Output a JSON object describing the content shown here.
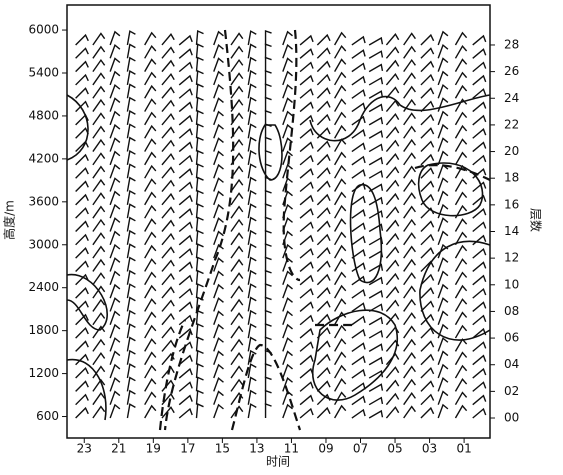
{
  "chart_data": {
    "type": "wind-barb",
    "ylabel": "高度/m",
    "y2label": "层数",
    "xlabel": "时间",
    "xlim": [
      24,
      -0.5
    ],
    "xticks": [
      23,
      21,
      19,
      17,
      15,
      13,
      11,
      {
        "value": 9,
        "label": "09"
      },
      {
        "value": 7,
        "label": "07"
      },
      {
        "value": 5,
        "label": "05"
      },
      {
        "value": 3,
        "label": "03"
      },
      {
        "value": 1,
        "label": "01"
      }
    ],
    "ylim": [
      300,
      6350
    ],
    "yticks": [
      600,
      1200,
      1800,
      2400,
      3000,
      3600,
      4200,
      4800,
      5400,
      6000
    ],
    "y2lim": [
      -1.5,
      31
    ],
    "y2ticks": [
      {
        "value": 0,
        "label": "00"
      },
      {
        "value": 2,
        "label": "02"
      },
      {
        "value": 4,
        "label": "04"
      },
      {
        "value": 6,
        "label": "06"
      },
      {
        "value": 8,
        "label": "08"
      },
      10,
      12,
      14,
      16,
      18,
      20,
      22,
      24,
      26,
      28
    ],
    "barbs": {
      "x": [
        23.5,
        22.5,
        21.5,
        20.5,
        19.5,
        18.5,
        17.5,
        16.5,
        15.5,
        14.5,
        13.5,
        12.5,
        11.5,
        10.5,
        9.5,
        8.5,
        7.5,
        6.5,
        5.5,
        4.5,
        3.5,
        2.5,
        1.5,
        0.5
      ],
      "levels": [
        0,
        1,
        2,
        3,
        4,
        5,
        6,
        7,
        8,
        9,
        10,
        11,
        12,
        13,
        14,
        15,
        16,
        17,
        18,
        19,
        20,
        21,
        22,
        23,
        24,
        25,
        26,
        27,
        28
      ],
      "direction": [
        225,
        215,
        200,
        190,
        210,
        220,
        230,
        185,
        200,
        215,
        190,
        180,
        200,
        230,
        225,
        210,
        235,
        240,
        220,
        215,
        225,
        200,
        210,
        230
      ],
      "color": "#111111"
    }
  }
}
